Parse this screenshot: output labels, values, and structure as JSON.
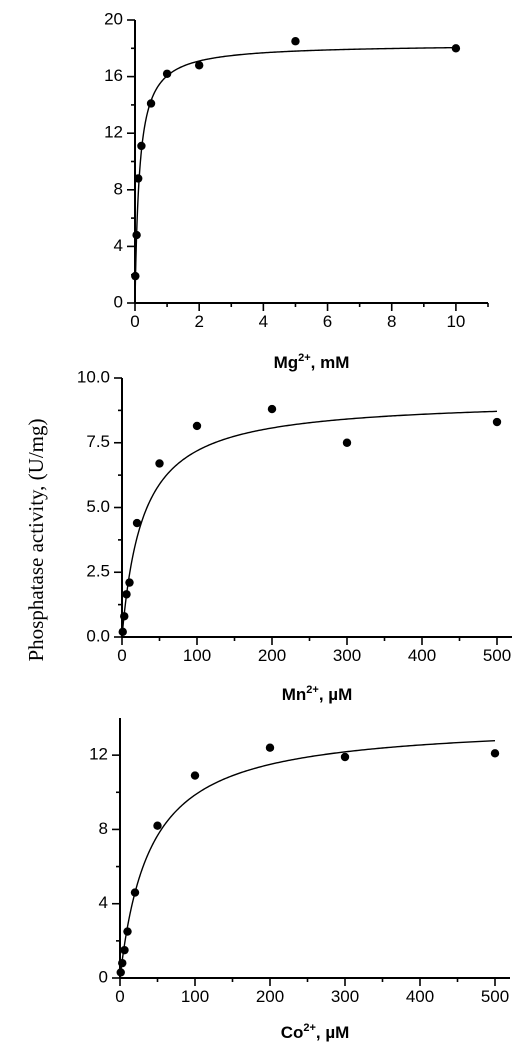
{
  "ylabel": "Phosphatase activity, (U/mg)",
  "chart_data": [
    {
      "type": "scatter",
      "xlabel": {
        "base": "Mg",
        "sup": "2+",
        "rest": ", mM"
      },
      "xlim": [
        0,
        11
      ],
      "ylim": [
        0,
        20
      ],
      "xticks": [
        0,
        2,
        4,
        6,
        8,
        10
      ],
      "xtick_labels": [
        "0",
        "2",
        "4",
        "6",
        "8",
        "10"
      ],
      "yticks": [
        0,
        4,
        8,
        12,
        16,
        20
      ],
      "ytick_labels": [
        "0",
        "4",
        "8",
        "12",
        "16",
        "20"
      ],
      "series": [
        {
          "x": [
            0.01,
            0.05,
            0.1,
            0.2,
            0.5,
            1,
            2,
            5,
            10
          ],
          "y": [
            1.9,
            4.8,
            8.8,
            11.1,
            14.1,
            16.2,
            16.8,
            18.5,
            18.0
          ],
          "fit": {
            "model": "michaelis-menten",
            "vmax": 18.3,
            "km": 0.14
          }
        }
      ]
    },
    {
      "type": "scatter",
      "xlabel": {
        "base": "Mn",
        "sup": "2+",
        "rest": ", µM"
      },
      "xlim": [
        0,
        520
      ],
      "ylim": [
        0,
        10
      ],
      "xticks": [
        0,
        100,
        200,
        300,
        400,
        500
      ],
      "xtick_labels": [
        "0",
        "100",
        "200",
        "300",
        "400",
        "500"
      ],
      "yticks": [
        0,
        2.5,
        5,
        7.5,
        10
      ],
      "ytick_labels": [
        "0.0",
        "2.5",
        "5.0",
        "7.5",
        "10.0"
      ],
      "series": [
        {
          "x": [
            1,
            3,
            6,
            10,
            20,
            50,
            100,
            200,
            300,
            500
          ],
          "y": [
            0.2,
            0.8,
            1.65,
            2.1,
            4.4,
            6.7,
            8.15,
            8.8,
            7.5,
            8.3
          ],
          "fit": {
            "model": "michaelis-menten",
            "vmax": 9.2,
            "km": 28
          }
        }
      ]
    },
    {
      "type": "scatter",
      "xlabel": {
        "base": "Co",
        "sup": "2+",
        "rest": ", µM"
      },
      "xlim": [
        0,
        520
      ],
      "ylim": [
        0,
        14
      ],
      "xticks": [
        0,
        100,
        200,
        300,
        400,
        500
      ],
      "xtick_labels": [
        "0",
        "100",
        "200",
        "300",
        "400",
        "500"
      ],
      "yticks": [
        0,
        4,
        8,
        12
      ],
      "ytick_labels": [
        "0",
        "4",
        "8",
        "12"
      ],
      "series": [
        {
          "x": [
            1,
            3,
            6,
            10,
            20,
            50,
            100,
            200,
            300,
            500
          ],
          "y": [
            0.3,
            0.8,
            1.5,
            2.5,
            4.6,
            8.2,
            10.9,
            12.4,
            11.9,
            12.1
          ],
          "fit": {
            "model": "michaelis-menten",
            "vmax": 13.8,
            "km": 40
          }
        }
      ]
    }
  ]
}
